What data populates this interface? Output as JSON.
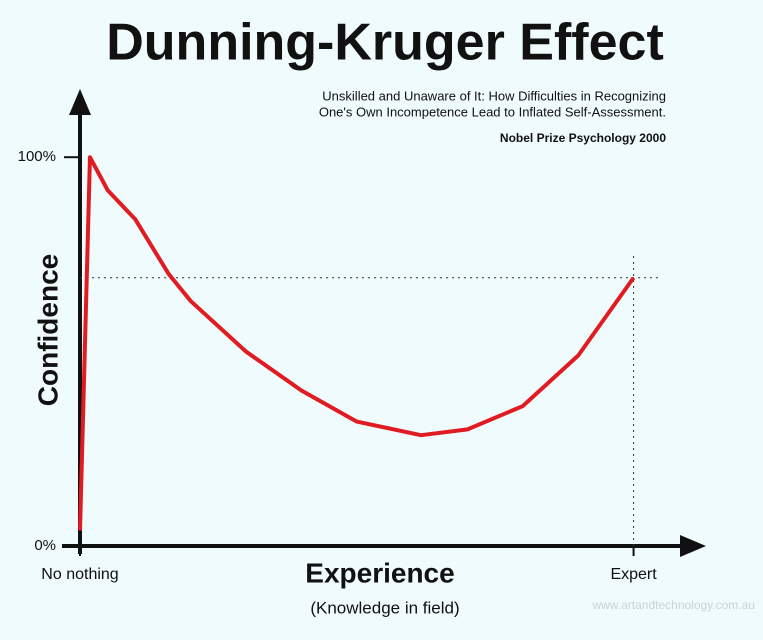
{
  "chart_data": {
    "type": "line",
    "title": "Dunning-Kruger Effect",
    "subtitle": [
      "Unskilled and Unaware of It: How Difficulties in Recognizing",
      "One's Own Incompetence Lead to Inflated Self-Assessment."
    ],
    "annotation": "Nobel Prize Psychology  2000",
    "xlabel": "Experience",
    "xlabel_note": "(Knowledge in field)",
    "ylabel": "Confidence",
    "credit": "www.artandtechnology.com.au",
    "x": [
      0,
      1.8,
      5,
      10,
      16,
      20,
      30,
      40,
      50,
      61.6,
      70,
      80,
      90,
      100
    ],
    "series": [
      {
        "name": "Confidence",
        "color": "#e01b22",
        "values": [
          4,
          100,
          91.5,
          84,
          70,
          63,
          50,
          40,
          32,
          28.5,
          30,
          36,
          49,
          69
        ]
      }
    ],
    "xlim": [
      0,
      112
    ],
    "ylim": [
      0,
      116
    ],
    "xticks": [
      {
        "value": 0,
        "label": "No nothing"
      },
      {
        "value": 100,
        "label": "Expert"
      }
    ],
    "yticks": [
      {
        "value": 0,
        "label": "0%"
      },
      {
        "value": 100,
        "label": "100%"
      }
    ]
  }
}
